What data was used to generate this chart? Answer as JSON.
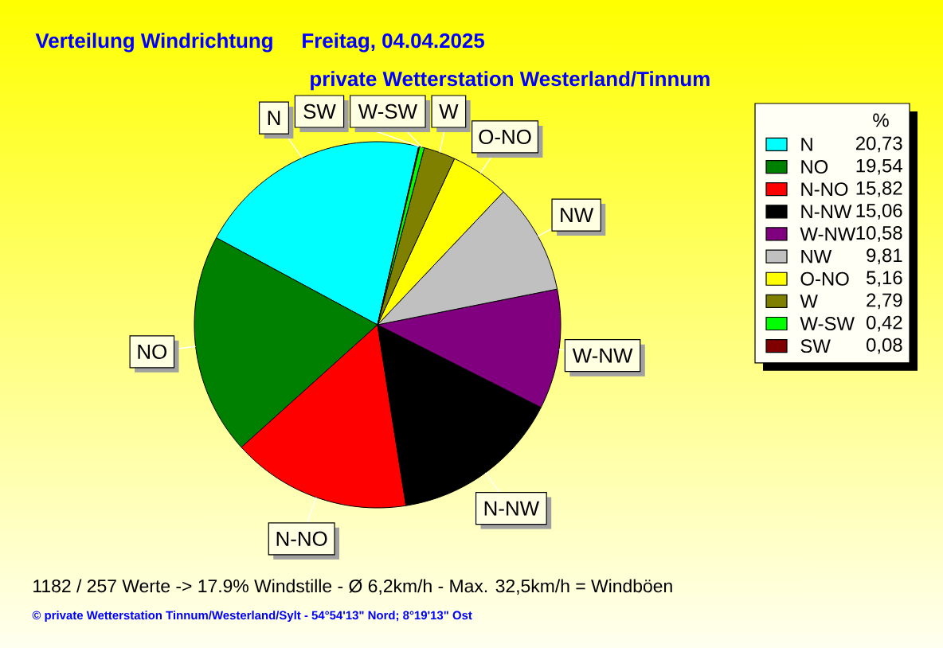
{
  "chart_data": {
    "type": "pie",
    "title": "Verteilung Windrichtung",
    "subtitle": "private Wetterstation Westerland/Tinnum",
    "categories": [
      "N",
      "NO",
      "N-NO",
      "N-NW",
      "W-NW",
      "NW",
      "O-NO",
      "W",
      "W-SW",
      "SW"
    ],
    "values": [
      20.73,
      19.54,
      15.82,
      15.06,
      10.58,
      9.81,
      5.16,
      2.79,
      0.42,
      0.08
    ],
    "colors": [
      "#00ffff",
      "#008000",
      "#ff0000",
      "#000000",
      "#800080",
      "#c0c0c0",
      "#ffff00",
      "#808000",
      "#00ff00",
      "#800000"
    ],
    "value_labels": [
      "20,73",
      "19,54",
      "15,82",
      "15,06",
      "10,58",
      "9,81",
      "5,16",
      "2,79",
      "0,42",
      "0,08"
    ],
    "legend": "right",
    "legend_title": "%",
    "annotations": [
      "Freitag, 04.04.2025",
      "1182 / 257 Werte -> 17.9% Windstille - Ø 6,2km/h - Max. 32,5km/h = Windböen",
      "© private Wetterstation Tinnum/Westerland/Sylt - 54°54'13\" Nord; 8°19'13\" Ost"
    ]
  }
}
